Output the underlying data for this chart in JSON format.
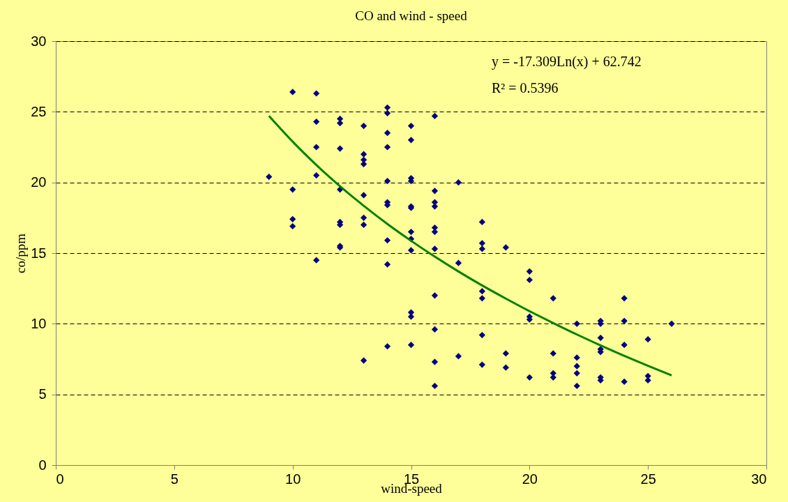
{
  "chart_data": {
    "type": "scatter",
    "title": "CO and wind - speed",
    "xlabel": "wind-speed",
    "ylabel": "co/ppm",
    "xlim": [
      0,
      30
    ],
    "xticks": [
      0,
      5,
      10,
      15,
      20,
      25,
      30
    ],
    "ylim": [
      0,
      30
    ],
    "yticks": [
      0,
      5,
      10,
      15,
      20,
      25,
      30
    ],
    "grid": "y",
    "annotations": [
      "y = -17.309Ln(x) + 62.742",
      "R² = 0.5396"
    ],
    "series": [
      {
        "color": "#000080",
        "marker": "diamond",
        "x": [
          9,
          10,
          10,
          10,
          10,
          11,
          11,
          11,
          11,
          11,
          12,
          12,
          12,
          12,
          12,
          12,
          12,
          12,
          13,
          13,
          13,
          13,
          13,
          13,
          13,
          13,
          14,
          14,
          14,
          14,
          14,
          14,
          14,
          14,
          14,
          14,
          15,
          15,
          15,
          15,
          15,
          15,
          15,
          15,
          15,
          15,
          15,
          15,
          16,
          16,
          16,
          16,
          16,
          16,
          16,
          16,
          16,
          16,
          16,
          17,
          17,
          17,
          18,
          18,
          18,
          18,
          18,
          18,
          18,
          19,
          19,
          19,
          20,
          20,
          20,
          20,
          20,
          21,
          21,
          21,
          21,
          22,
          22,
          22,
          22,
          22,
          23,
          23,
          23,
          23,
          23,
          23,
          23,
          24,
          24,
          24,
          24,
          25,
          25,
          25,
          26
        ],
        "values": [
          20.4,
          26.4,
          19.5,
          17.4,
          16.9,
          26.3,
          24.3,
          22.5,
          20.5,
          14.5,
          24.5,
          24.2,
          22.4,
          19.5,
          17.2,
          17.0,
          15.5,
          15.4,
          24.0,
          22.0,
          21.6,
          21.3,
          19.1,
          17.5,
          17.0,
          7.4,
          25.3,
          24.9,
          23.5,
          22.5,
          20.1,
          18.6,
          18.4,
          15.9,
          14.2,
          8.4,
          24.0,
          23.0,
          20.3,
          20.1,
          18.3,
          18.2,
          16.5,
          16.0,
          15.2,
          10.8,
          10.5,
          8.5,
          24.7,
          19.4,
          18.6,
          18.3,
          16.8,
          16.5,
          15.3,
          12.0,
          9.6,
          7.3,
          5.6,
          20.0,
          14.3,
          7.7,
          17.2,
          15.7,
          15.3,
          12.3,
          11.8,
          9.2,
          7.1,
          15.4,
          7.9,
          6.9,
          13.7,
          13.1,
          10.5,
          10.3,
          6.2,
          11.8,
          7.9,
          6.5,
          6.2,
          10.0,
          7.6,
          7.0,
          6.5,
          5.6,
          10.2,
          10.0,
          9.0,
          8.2,
          8.0,
          6.2,
          6.0,
          11.8,
          10.2,
          8.5,
          5.9,
          8.9,
          6.3,
          6.0,
          10.0
        ]
      },
      {
        "type": "line",
        "color": "#008000",
        "marker": "none",
        "x": [
          9,
          10,
          11,
          12,
          13,
          14,
          15,
          16,
          17,
          18,
          19,
          20,
          21,
          22,
          23,
          24,
          25,
          26
        ],
        "values": [
          24.71,
          22.89,
          21.24,
          19.73,
          18.35,
          17.06,
          15.87,
          14.75,
          13.7,
          12.71,
          11.78,
          10.89,
          10.05,
          9.24,
          8.47,
          7.73,
          7.03,
          6.35
        ]
      }
    ]
  }
}
